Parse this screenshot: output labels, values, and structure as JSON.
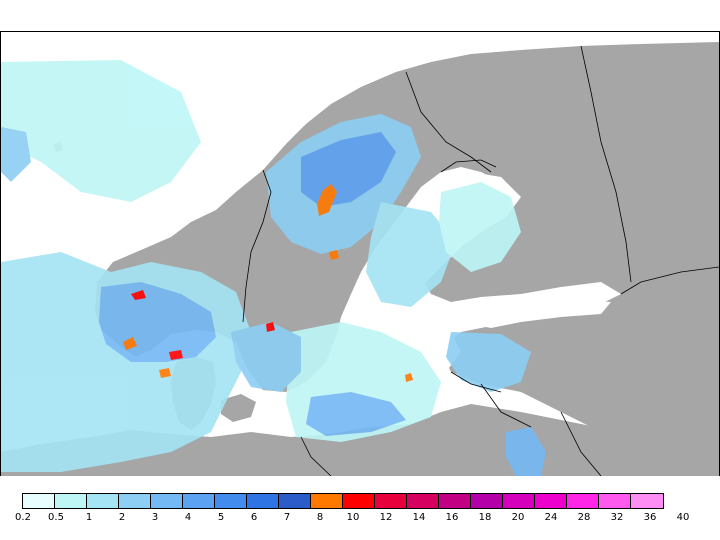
{
  "legend": {
    "colors": [
      "#e8fefe",
      "#bef6f6",
      "#a4e4f4",
      "#8ccef4",
      "#74b8f4",
      "#5ca2f2",
      "#428cee",
      "#2e74e4",
      "#2c5cc8",
      "#ff7800",
      "#ff0000",
      "#e8003c",
      "#d60060",
      "#c20084",
      "#b400a8",
      "#d400bc",
      "#ee00cc",
      "#ff26e8",
      "#ff5aee",
      "#ff8ef4"
    ],
    "labels": [
      "0.2",
      "0.5",
      "1",
      "2",
      "3",
      "4",
      "5",
      "6",
      "7",
      "8",
      "10",
      "12",
      "14",
      "16",
      "18",
      "20",
      "24",
      "28",
      "32",
      "36",
      "40"
    ]
  },
  "map_colors": {
    "land": "#a6a6a6",
    "sea": "#ffffff",
    "border": "#000000"
  }
}
